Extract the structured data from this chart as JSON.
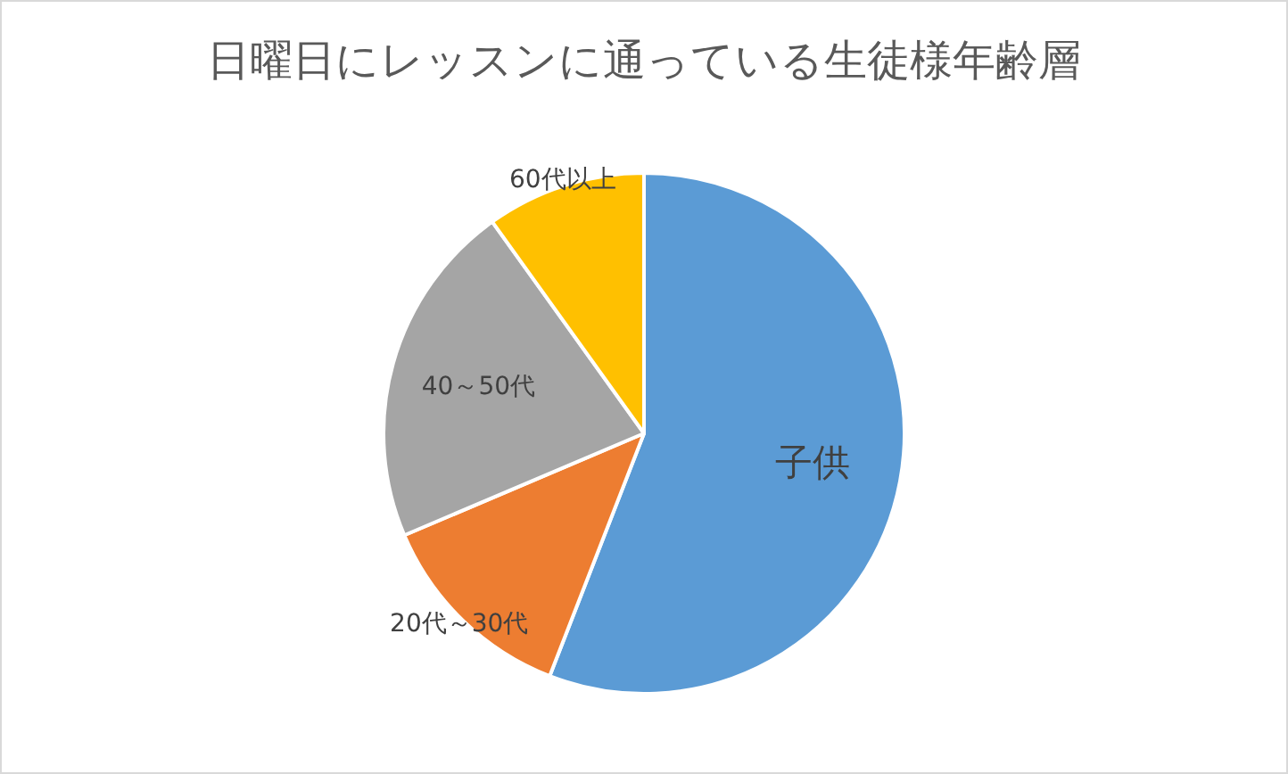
{
  "chart_data": {
    "type": "pie",
    "title": "日曜日にレッスンに通っている生徒様年齢層",
    "categories": [
      "子供",
      "20代～30代",
      "40～50代",
      "60代以上"
    ],
    "values": [
      55.9,
      12.7,
      21.5,
      9.9
    ],
    "colors": [
      "#5b9bd5",
      "#ed7d31",
      "#a5a5a5",
      "#ffc000"
    ],
    "legend": false
  }
}
